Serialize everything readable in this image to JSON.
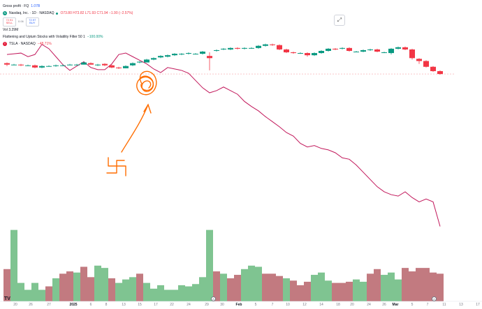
{
  "legend": {
    "title": "Gross profit · FQ",
    "title_value": "1.07B",
    "symbol": "Nasdaq, Inc. · 1D · NASDAQ",
    "ohlc": "O73.80 H73.82 L71.93 C71.94 −1.90 (−2.57%)",
    "sell_price": "72.91",
    "sell_label": "SELL",
    "spread": "0.06",
    "buy_price": "72.97",
    "buy_label": "BUY",
    "vol": "Vol  3.29M",
    "indicator": "Flattening and Uptum Stocks with Volatility Filter 50 1",
    "indicator_value": "−100.00%",
    "compare": "TSLA · NASDAQ",
    "compare_value": "−48.71%"
  },
  "xaxis": {
    "ticks": [
      "20",
      "26",
      "27",
      "2025",
      "6",
      "8",
      "13",
      "15",
      "17",
      "22",
      "24",
      "29",
      "30",
      "Feb",
      "5",
      "7",
      "10",
      "12",
      "14",
      "18",
      "20",
      "24",
      "26",
      "Mar",
      "5",
      "7",
      "11",
      "13",
      "17"
    ]
  },
  "annotation_icons": {
    "a1": "A",
    "a2": "A",
    "a3": "A"
  },
  "colors": {
    "up": "#089981",
    "down": "#f23645",
    "vol_up": "#7fc491",
    "vol_down": "#c27a80",
    "compare_line": "#c2185b",
    "drawing": "#ff6d00",
    "dashed": "#f7a1a8"
  },
  "chart_data": {
    "type": "candlestick",
    "series": [
      {
        "name": "Nasdaq, Inc.",
        "ohlc": [
          [
            0.46,
            0.44,
            0.47,
            0.42
          ],
          [
            0.44,
            0.44,
            0.45,
            0.43
          ],
          [
            0.44,
            0.43,
            0.45,
            0.42
          ],
          [
            0.43,
            0.43,
            0.44,
            0.42
          ],
          [
            0.43,
            0.4,
            0.44,
            0.39
          ],
          [
            0.4,
            0.42,
            0.43,
            0.39
          ],
          [
            0.42,
            0.42,
            0.43,
            0.41
          ],
          [
            0.42,
            0.43,
            0.44,
            0.41
          ],
          [
            0.43,
            0.43,
            0.44,
            0.42
          ],
          [
            0.43,
            0.44,
            0.45,
            0.43
          ],
          [
            0.44,
            0.44,
            0.45,
            0.43
          ],
          [
            0.44,
            0.47,
            0.48,
            0.44
          ],
          [
            0.46,
            0.44,
            0.47,
            0.44
          ],
          [
            0.43,
            0.44,
            0.45,
            0.42
          ],
          [
            0.45,
            0.43,
            0.46,
            0.42
          ],
          [
            0.43,
            0.4,
            0.44,
            0.39
          ],
          [
            0.4,
            0.39,
            0.41,
            0.38
          ],
          [
            0.39,
            0.42,
            0.43,
            0.39
          ],
          [
            0.43,
            0.46,
            0.47,
            0.42
          ],
          [
            0.47,
            0.48,
            0.49,
            0.46
          ],
          [
            0.47,
            0.51,
            0.52,
            0.47
          ],
          [
            0.51,
            0.53,
            0.54,
            0.5
          ],
          [
            0.54,
            0.56,
            0.57,
            0.53
          ],
          [
            0.55,
            0.57,
            0.58,
            0.54
          ],
          [
            0.57,
            0.59,
            0.6,
            0.56
          ],
          [
            0.58,
            0.59,
            0.6,
            0.57
          ],
          [
            0.59,
            0.6,
            0.61,
            0.58
          ],
          [
            0.59,
            0.59,
            0.6,
            0.58
          ],
          [
            0.59,
            0.62,
            0.63,
            0.58
          ],
          [
            0.56,
            0.53,
            0.61,
            0.36
          ],
          [
            0.63,
            0.64,
            0.65,
            0.62
          ],
          [
            0.65,
            0.66,
            0.67,
            0.64
          ],
          [
            0.65,
            0.67,
            0.68,
            0.64
          ],
          [
            0.67,
            0.66,
            0.68,
            0.65
          ],
          [
            0.66,
            0.67,
            0.68,
            0.65
          ],
          [
            0.67,
            0.67,
            0.68,
            0.66
          ],
          [
            0.67,
            0.7,
            0.71,
            0.66
          ],
          [
            0.7,
            0.72,
            0.73,
            0.69
          ],
          [
            0.72,
            0.71,
            0.73,
            0.7
          ],
          [
            0.71,
            0.65,
            0.72,
            0.64
          ],
          [
            0.65,
            0.61,
            0.66,
            0.6
          ],
          [
            0.61,
            0.6,
            0.62,
            0.59
          ],
          [
            0.6,
            0.6,
            0.61,
            0.59
          ],
          [
            0.6,
            0.57,
            0.61,
            0.55
          ],
          [
            0.57,
            0.6,
            0.61,
            0.56
          ],
          [
            0.6,
            0.63,
            0.64,
            0.59
          ],
          [
            0.63,
            0.66,
            0.67,
            0.62
          ],
          [
            0.66,
            0.65,
            0.67,
            0.64
          ],
          [
            0.66,
            0.67,
            0.68,
            0.65
          ],
          [
            0.67,
            0.63,
            0.68,
            0.62
          ],
          [
            0.62,
            0.62,
            0.63,
            0.61
          ],
          [
            0.62,
            0.64,
            0.65,
            0.61
          ],
          [
            0.64,
            0.65,
            0.66,
            0.63
          ],
          [
            0.65,
            0.62,
            0.66,
            0.61
          ],
          [
            0.61,
            0.61,
            0.62,
            0.6
          ],
          [
            0.6,
            0.66,
            0.67,
            0.58
          ],
          [
            0.66,
            0.68,
            0.69,
            0.65
          ],
          [
            0.68,
            0.65,
            0.69,
            0.64
          ],
          [
            0.65,
            0.53,
            0.66,
            0.51
          ],
          [
            0.52,
            0.49,
            0.53,
            0.45
          ],
          [
            0.49,
            0.41,
            0.5,
            0.4
          ],
          [
            0.41,
            0.35,
            0.42,
            0.34
          ],
          [
            0.35,
            0.31,
            0.36,
            0.3
          ]
        ]
      },
      {
        "name": "TSLA · NASDAQ",
        "values": [
          0.58,
          0.59,
          0.6,
          0.55,
          0.58,
          0.72,
          0.66,
          0.55,
          0.44,
          0.36,
          0.42,
          0.48,
          0.4,
          0.37,
          0.37,
          0.45,
          0.58,
          0.6,
          0.55,
          0.5,
          0.45,
          0.38,
          0.33,
          0.4,
          0.38,
          0.36,
          0.32,
          0.22,
          0.12,
          0.05,
          0.08,
          0.13,
          0.08,
          0.03,
          -0.07,
          -0.14,
          -0.2,
          -0.28,
          -0.35,
          -0.42,
          -0.5,
          -0.55,
          -0.65,
          -0.7,
          -0.68,
          -0.72,
          -0.74,
          -0.78,
          -0.85,
          -0.87,
          -0.95,
          -1.05,
          -1.15,
          -1.25,
          -1.32,
          -1.36,
          -1.38,
          -1.32,
          -1.4,
          -1.46,
          -1.42,
          -1.46,
          -1.8
        ]
      }
    ],
    "volume": [
      [
        0.28,
        0
      ],
      [
        0.62,
        1
      ],
      [
        0.16,
        1
      ],
      [
        0.1,
        1
      ],
      [
        0.16,
        1
      ],
      [
        0.1,
        1
      ],
      [
        0.13,
        0
      ],
      [
        0.2,
        1
      ],
      [
        0.24,
        0
      ],
      [
        0.26,
        0
      ],
      [
        0.25,
        1
      ],
      [
        0.3,
        0
      ],
      [
        0.21,
        0
      ],
      [
        0.31,
        1
      ],
      [
        0.29,
        1
      ],
      [
        0.2,
        0
      ],
      [
        0.16,
        1
      ],
      [
        0.19,
        1
      ],
      [
        0.21,
        1
      ],
      [
        0.24,
        0
      ],
      [
        0.16,
        1
      ],
      [
        0.11,
        1
      ],
      [
        0.14,
        1
      ],
      [
        0.1,
        1
      ],
      [
        0.1,
        1
      ],
      [
        0.14,
        1
      ],
      [
        0.13,
        1
      ],
      [
        0.15,
        1
      ],
      [
        0.21,
        1
      ],
      [
        0.62,
        1
      ],
      [
        0.26,
        0
      ],
      [
        0.24,
        1
      ],
      [
        0.2,
        0
      ],
      [
        0.23,
        0
      ],
      [
        0.28,
        1
      ],
      [
        0.31,
        1
      ],
      [
        0.3,
        1
      ],
      [
        0.24,
        0
      ],
      [
        0.24,
        0
      ],
      [
        0.22,
        0
      ],
      [
        0.2,
        1
      ],
      [
        0.18,
        0
      ],
      [
        0.14,
        0
      ],
      [
        0.17,
        0
      ],
      [
        0.23,
        1
      ],
      [
        0.25,
        1
      ],
      [
        0.18,
        1
      ],
      [
        0.16,
        0
      ],
      [
        0.16,
        0
      ],
      [
        0.17,
        0
      ],
      [
        0.19,
        1
      ],
      [
        0.17,
        1
      ],
      [
        0.24,
        0
      ],
      [
        0.28,
        0
      ],
      [
        0.23,
        1
      ],
      [
        0.25,
        1
      ],
      [
        0.19,
        1
      ],
      [
        0.29,
        0
      ],
      [
        0.26,
        0
      ],
      [
        0.29,
        0
      ],
      [
        0.29,
        0
      ],
      [
        0.25,
        0
      ],
      [
        0.24,
        0
      ]
    ],
    "price_line": 0.31,
    "ylim": [
      -1.9,
      0.9
    ],
    "vol_lim": [
      0,
      0.63
    ],
    "grid": false,
    "legend": "top-left"
  }
}
